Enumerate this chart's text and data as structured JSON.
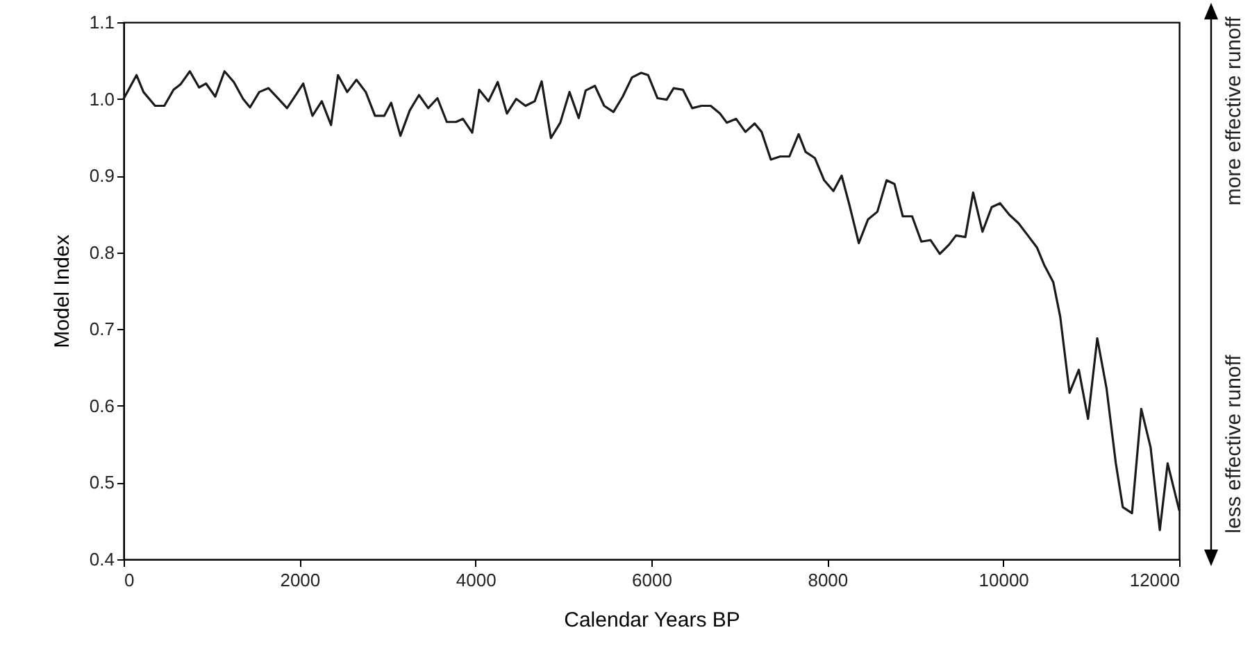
{
  "chart_data": {
    "type": "line",
    "xlabel": "Calendar Years BP",
    "ylabel": "Model Index",
    "x": [
      0,
      147,
      226,
      358,
      463,
      568,
      647,
      753,
      858,
      937,
      1042,
      1147,
      1253,
      1358,
      1437,
      1542,
      1647,
      1753,
      1858,
      1963,
      2042,
      2147,
      2253,
      2358,
      2437,
      2542,
      2647,
      2753,
      2858,
      2963,
      3042,
      3147,
      3253,
      3358,
      3463,
      3568,
      3674,
      3779,
      3858,
      3963,
      4042,
      4148,
      4253,
      4358,
      4463,
      4569,
      4674,
      4753,
      4858,
      4964,
      5069,
      5174,
      5253,
      5358,
      5463,
      5569,
      5674,
      5779,
      5884,
      5963,
      6069,
      6174,
      6253,
      6358,
      6464,
      6569,
      6674,
      6779,
      6858,
      6964,
      7069,
      7174,
      7253,
      7358,
      7464,
      7569,
      7674,
      7753,
      7858,
      7964,
      8069,
      8163,
      8253,
      8358,
      8463,
      8569,
      8674,
      8764,
      8858,
      8964,
      9069,
      9174,
      9279,
      9384,
      9463,
      9569,
      9658,
      9764,
      9869,
      9964,
      10069,
      10174,
      10280,
      10385,
      10464,
      10569,
      10648,
      10754,
      10859,
      10964,
      11069,
      11174,
      11280,
      11359,
      11464,
      11569,
      11675,
      11780,
      11869,
      12000
    ],
    "series": [
      {
        "color": "#1a1a1a",
        "values": [
          1.0,
          1.031,
          1.009,
          0.991,
          0.991,
          1.012,
          1.019,
          1.036,
          1.015,
          1.02,
          1.003,
          1.036,
          1.022,
          1.0,
          0.989,
          1.009,
          1.014,
          1.001,
          0.988,
          1.006,
          1.02,
          0.978,
          0.997,
          0.966,
          1.031,
          1.009,
          1.025,
          1.009,
          0.978,
          0.978,
          0.995,
          0.952,
          0.985,
          1.005,
          0.988,
          1.001,
          0.97,
          0.97,
          0.974,
          0.956,
          1.012,
          0.997,
          1.022,
          0.981,
          1.0,
          0.991,
          0.997,
          1.023,
          0.949,
          0.969,
          1.009,
          0.975,
          1.011,
          1.017,
          0.991,
          0.983,
          1.003,
          1.028,
          1.034,
          1.031,
          1.001,
          0.999,
          1.014,
          1.012,
          0.988,
          0.991,
          0.991,
          0.981,
          0.969,
          0.974,
          0.957,
          0.968,
          0.957,
          0.921,
          0.925,
          0.925,
          0.954,
          0.931,
          0.923,
          0.894,
          0.88,
          0.9,
          0.861,
          0.812,
          0.843,
          0.853,
          0.894,
          0.889,
          0.847,
          0.847,
          0.814,
          0.816,
          0.798,
          0.81,
          0.822,
          0.82,
          0.878,
          0.827,
          0.859,
          0.864,
          0.849,
          0.838,
          0.822,
          0.806,
          0.784,
          0.761,
          0.716,
          0.617,
          0.647,
          0.583,
          0.688,
          0.623,
          0.525,
          0.468,
          0.46,
          0.596,
          0.546,
          0.438,
          0.525,
          0.464
        ]
      }
    ],
    "xlim": [
      0,
      12000
    ],
    "xticks": [
      0,
      2000,
      4000,
      6000,
      8000,
      10000,
      12000
    ],
    "ylim": [
      0.4,
      1.1
    ],
    "yticks": [
      0.4,
      0.5,
      0.6,
      0.7,
      0.8,
      0.9,
      {
        "value": 1,
        "label": "1.0"
      },
      1.1
    ],
    "grid": false,
    "line_style": "solid",
    "annotations": [
      "more effective runoff",
      "less effective runoff"
    ]
  }
}
